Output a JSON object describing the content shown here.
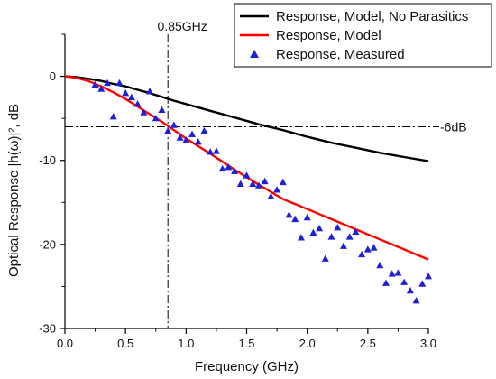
{
  "chart_data": {
    "type": "line",
    "xlabel": "Frequency (GHz)",
    "ylabel": "Optical Response |h(ω)|², dB",
    "xlim": [
      0.0,
      3.0
    ],
    "ylim": [
      -30,
      5
    ],
    "xticks": [
      0.0,
      0.5,
      1.0,
      1.5,
      2.0,
      2.5,
      3.0
    ],
    "xtick_labels": [
      "0.0",
      "0.5",
      "1.0",
      "1.5",
      "2.0",
      "2.5",
      "3.0"
    ],
    "yticks": [
      0,
      -10,
      -20,
      -30
    ],
    "ytick_labels": [
      "0",
      "-10",
      "-20",
      "-30"
    ],
    "grid": false,
    "legend_position": "top-right",
    "series": [
      {
        "name": "Response, Model, No Parasitics",
        "style": "line",
        "color": "#000000",
        "x": [
          0.0,
          0.1,
          0.2,
          0.3,
          0.4,
          0.5,
          0.6,
          0.7,
          0.8,
          0.9,
          1.0,
          1.2,
          1.4,
          1.6,
          1.8,
          2.0,
          2.2,
          2.4,
          2.6,
          2.8,
          3.0
        ],
        "y": [
          0.0,
          -0.1,
          -0.3,
          -0.55,
          -0.9,
          -1.2,
          -1.6,
          -2.0,
          -2.45,
          -2.9,
          -3.3,
          -4.1,
          -4.9,
          -5.7,
          -6.4,
          -7.2,
          -7.9,
          -8.5,
          -9.1,
          -9.6,
          -10.1
        ]
      },
      {
        "name": "Response, Model",
        "style": "line",
        "color": "#ff0000",
        "x": [
          0.0,
          0.1,
          0.2,
          0.3,
          0.4,
          0.5,
          0.6,
          0.7,
          0.8,
          0.9,
          1.0,
          1.2,
          1.4,
          1.6,
          1.8,
          2.0,
          2.2,
          2.4,
          2.6,
          2.8,
          3.0
        ],
        "y": [
          0.0,
          -0.2,
          -0.6,
          -1.2,
          -1.9,
          -2.7,
          -3.6,
          -4.5,
          -5.4,
          -6.4,
          -7.4,
          -9.2,
          -11.1,
          -12.9,
          -14.6,
          -15.8,
          -17.0,
          -18.2,
          -19.4,
          -20.6,
          -21.8
        ]
      },
      {
        "name": "Response, Measured",
        "style": "markers",
        "marker": "triangle-up",
        "color": "#1f1fd6",
        "x": [
          0.25,
          0.3,
          0.35,
          0.4,
          0.45,
          0.5,
          0.55,
          0.6,
          0.65,
          0.7,
          0.75,
          0.8,
          0.85,
          0.9,
          0.95,
          1.0,
          1.05,
          1.1,
          1.15,
          1.2,
          1.25,
          1.3,
          1.35,
          1.4,
          1.45,
          1.5,
          1.55,
          1.6,
          1.65,
          1.7,
          1.75,
          1.8,
          1.85,
          1.9,
          1.95,
          2.0,
          2.05,
          2.1,
          2.15,
          2.2,
          2.25,
          2.3,
          2.35,
          2.4,
          2.45,
          2.5,
          2.55,
          2.6,
          2.65,
          2.7,
          2.75,
          2.8,
          2.85,
          2.9,
          2.95,
          3.0
        ],
        "y": [
          -1.0,
          -1.5,
          -0.8,
          -4.8,
          -0.8,
          -2.0,
          -2.5,
          -3.3,
          -4.3,
          -1.8,
          -5.0,
          -4.0,
          -6.5,
          -5.8,
          -7.3,
          -7.6,
          -6.9,
          -7.8,
          -6.5,
          -9.0,
          -8.9,
          -11.0,
          -10.8,
          -11.3,
          -12.8,
          -11.8,
          -12.8,
          -13.0,
          -12.5,
          -14.3,
          -13.5,
          -12.6,
          -16.5,
          -17.0,
          -19.2,
          -16.8,
          -18.6,
          -18.1,
          -21.7,
          -19.1,
          -18.0,
          -20.2,
          -19.1,
          -18.5,
          -21.2,
          -20.6,
          -20.4,
          -22.5,
          -24.6,
          -23.5,
          -23.4,
          -24.5,
          -25.5,
          -26.7,
          -24.7,
          -23.8
        ]
      }
    ],
    "annotations": [
      {
        "text": "0.85GHz",
        "type": "vertical-line",
        "x": 0.85
      },
      {
        "text": "-6dB",
        "type": "horizontal-line",
        "y": -6
      }
    ]
  }
}
